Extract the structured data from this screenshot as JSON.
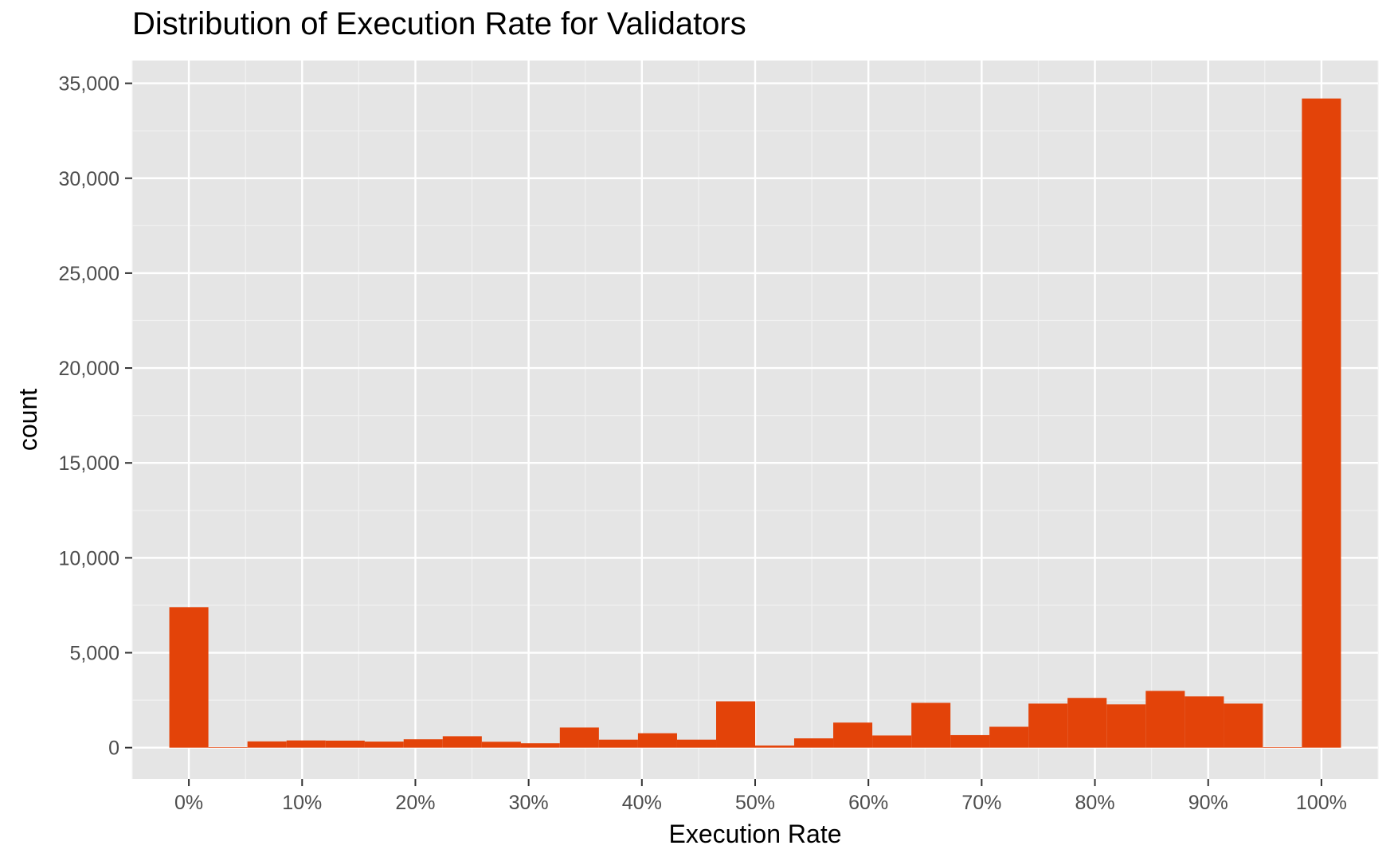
{
  "chart_data": {
    "type": "bar",
    "title": "Distribution of Execution Rate for Validators",
    "xlabel": "Execution Rate",
    "ylabel": "count",
    "bin_width": 0.0345,
    "x": [
      0.0,
      0.0345,
      0.069,
      0.1035,
      0.138,
      0.1724,
      0.2069,
      0.2414,
      0.2759,
      0.3103,
      0.3448,
      0.3793,
      0.4138,
      0.4483,
      0.4828,
      0.5172,
      0.5517,
      0.5862,
      0.6207,
      0.6552,
      0.6897,
      0.7241,
      0.7586,
      0.7931,
      0.8276,
      0.8621,
      0.8966,
      0.931,
      0.9655,
      1.0
    ],
    "values": [
      7400,
      30,
      330,
      380,
      370,
      320,
      440,
      600,
      310,
      230,
      1060,
      420,
      760,
      420,
      2440,
      110,
      490,
      1320,
      640,
      2360,
      660,
      1100,
      2320,
      2620,
      2280,
      2990,
      2700,
      2320,
      30,
      34200
    ],
    "xlim": [
      -0.05,
      1.05
    ],
    "ylim": [
      -1650,
      36200
    ],
    "x_ticks": [
      0,
      0.1,
      0.2,
      0.3,
      0.4,
      0.5,
      0.6,
      0.7,
      0.8,
      0.9,
      1.0
    ],
    "x_tick_labels": [
      "0%",
      "10%",
      "20%",
      "30%",
      "40%",
      "50%",
      "60%",
      "70%",
      "80%",
      "90%",
      "100%"
    ],
    "y_ticks": [
      0,
      5000,
      10000,
      15000,
      20000,
      25000,
      30000,
      35000
    ],
    "y_tick_labels": [
      "0",
      "5,000",
      "10,000",
      "15,000",
      "20,000",
      "25,000",
      "30,000",
      "35,000"
    ],
    "grid": true,
    "legend": "none",
    "colors": {
      "bar": "#e34309",
      "panel": "#e5e5e5",
      "grid_major": "#ffffff",
      "grid_minor": "#f2f2f2",
      "tick_text": "#4d4d4d",
      "tick_mark": "#333333"
    }
  }
}
